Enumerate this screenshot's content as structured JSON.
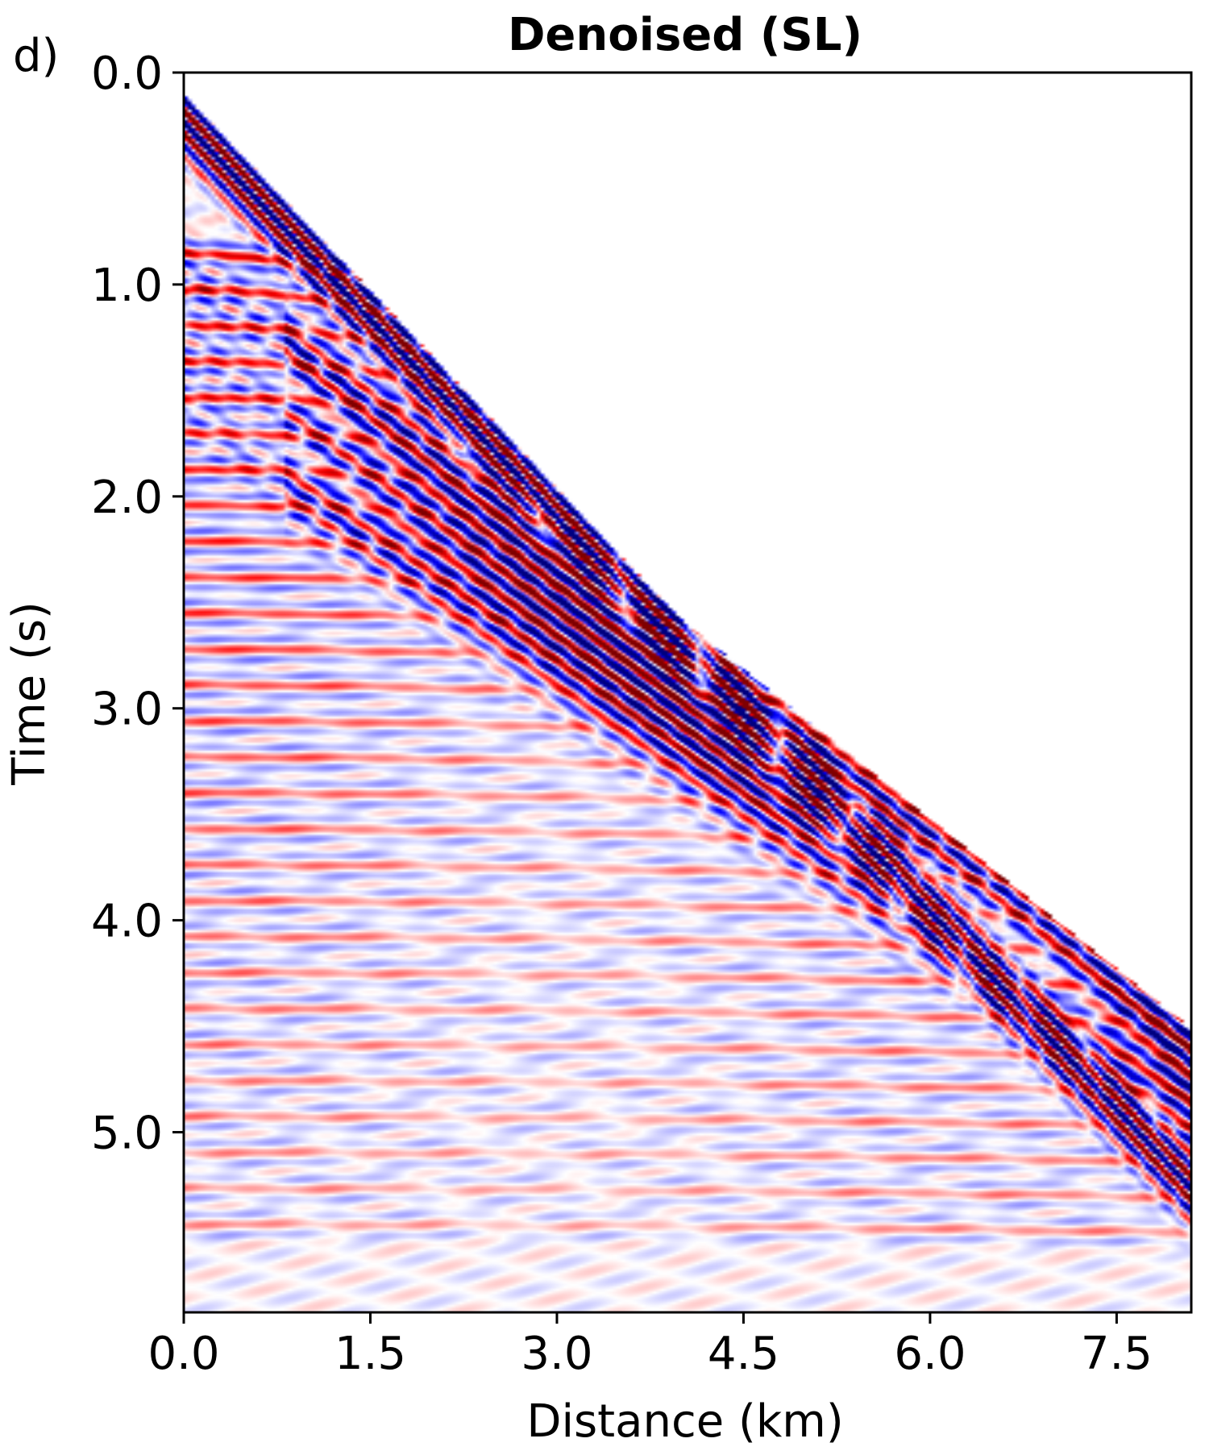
{
  "panel_label": "d)",
  "chart_data": {
    "type": "heatmap",
    "title": "Denoised (SL)",
    "xlabel": "Distance (km)",
    "ylabel": "Time (s)",
    "xlim": [
      0,
      8.1
    ],
    "ylim": [
      5.85,
      0
    ],
    "y_inverted": true,
    "x_ticks": [
      "0.0",
      "1.5",
      "3.0",
      "4.5",
      "6.0",
      "7.5"
    ],
    "x_tick_values": [
      0,
      1.5,
      3.0,
      4.5,
      6.0,
      7.5
    ],
    "y_ticks": [
      "0.0",
      "1.0",
      "2.0",
      "3.0",
      "4.0",
      "5.0"
    ],
    "y_tick_values": [
      0,
      1,
      2,
      3,
      4,
      5
    ],
    "colormap": [
      "#00007f",
      "#0000ff",
      "#ffffff",
      "#ff0000",
      "#7f0000"
    ],
    "grid": false,
    "description_events": [
      {
        "kind": "direct-arrival",
        "t0": 0.18,
        "slope": 0.62,
        "amp": 1.0
      },
      {
        "kind": "direct-arrival",
        "t0": 0.33,
        "slope": 0.62,
        "amp": 0.9
      },
      {
        "kind": "refraction",
        "t0": 1.45,
        "slope": 0.41,
        "amp": 1.0
      },
      {
        "kind": "refraction",
        "t0": 1.75,
        "slope": 0.4,
        "amp": 0.9
      },
      {
        "kind": "refraction",
        "t0": 2.55,
        "slope": 0.34,
        "amp": 0.85
      }
    ]
  }
}
